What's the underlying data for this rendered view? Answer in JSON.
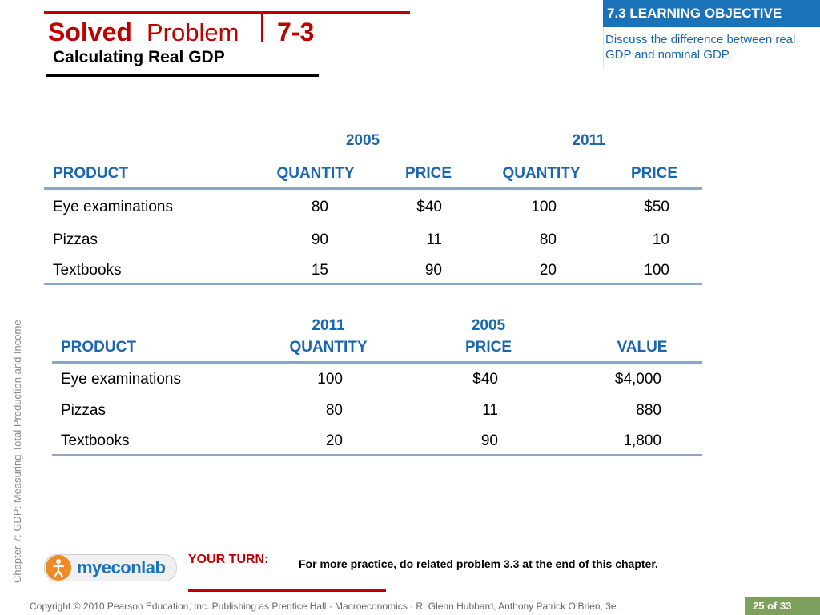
{
  "header": {
    "solved": "Solved",
    "problem": "Problem",
    "number": "7-3",
    "subtitle": "Calculating Real GDP"
  },
  "learning_objective": {
    "title": "7.3 LEARNING OBJECTIVE",
    "text": "Discuss the difference between real GDP and nominal GDP."
  },
  "sidebar": {
    "chapter": "Chapter 7:  GDP: Measuring Total Production and Income"
  },
  "table1": {
    "year_a": "2005",
    "year_b": "2011",
    "headers": [
      "PRODUCT",
      "QUANTITY",
      "PRICE",
      "QUANTITY",
      "PRICE"
    ],
    "rows": [
      [
        "Eye examinations",
        "80",
        "$40",
        "100",
        "$50"
      ],
      [
        "Pizzas",
        "90",
        "11",
        "80",
        "10"
      ],
      [
        "Textbooks",
        "15",
        "90",
        "20",
        "100"
      ]
    ]
  },
  "table2": {
    "headers_top": [
      "2011",
      "2005"
    ],
    "headers": [
      "PRODUCT",
      "QUANTITY",
      "PRICE",
      "VALUE"
    ],
    "rows": [
      [
        "Eye examinations",
        "100",
        "$40",
        "$4,000"
      ],
      [
        "Pizzas",
        "80",
        "11",
        "880"
      ],
      [
        "Textbooks",
        "20",
        "90",
        "1,800"
      ]
    ]
  },
  "footer": {
    "logo_text": "myeconlab",
    "your_turn_label": "YOUR TURN:",
    "your_turn_text": "For more practice, do related problem 3.3 at the end of this chapter.",
    "copyright": "Copyright © 2010 Pearson Education, Inc. Publishing as Prentice Hall · Macroeconomics · R. Glenn Hubbard, Anthony Patrick O’Brien, 3e.",
    "page_current": "25",
    "page_of": "of",
    "page_total": "33"
  },
  "colors": {
    "accent_red": "#c00000",
    "accent_blue": "#1a66b0",
    "rule_blue": "#8ca6c8",
    "pager_green": "#7f9f5f"
  }
}
